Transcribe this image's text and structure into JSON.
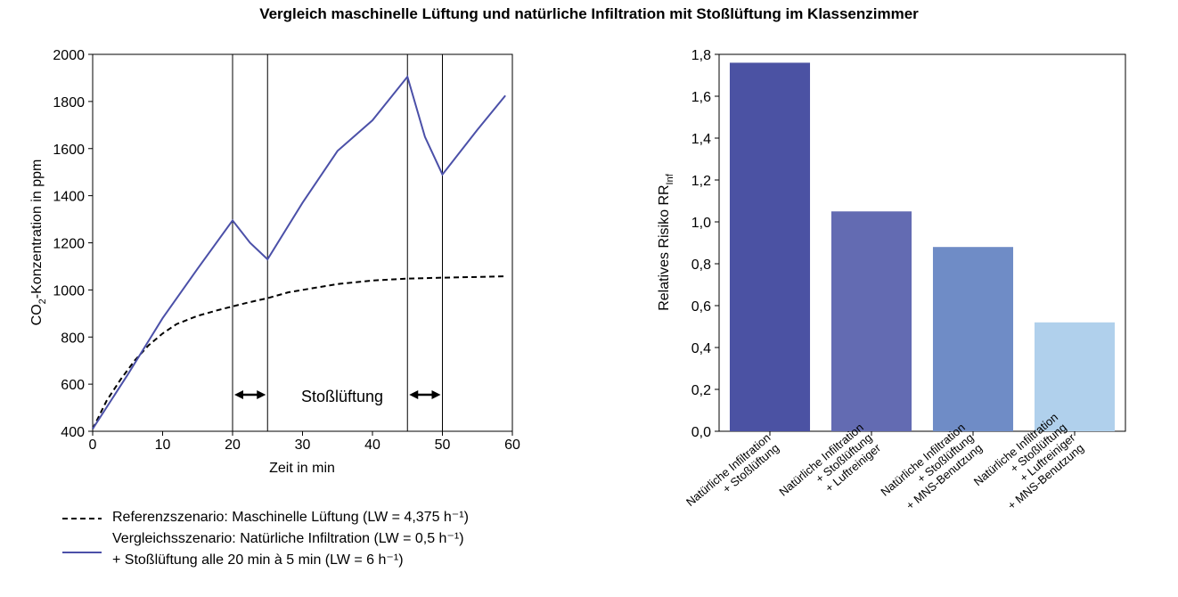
{
  "title": "Vergleich maschinelle Lüftung und natürliche Infiltration mit Stoßlüftung im Klassenzimmer",
  "chart_data": [
    {
      "type": "line",
      "xlabel": "Zeit in min",
      "ylabel_main": "CO",
      "ylabel_sub": "2",
      "ylabel_rest": "-Konzentration in ppm",
      "xlim": [
        0,
        60
      ],
      "ylim": [
        400,
        2000
      ],
      "xticks": [
        0,
        10,
        20,
        30,
        40,
        50,
        60
      ],
      "yticks": [
        400,
        600,
        800,
        1000,
        1200,
        1400,
        1600,
        1800,
        2000
      ],
      "vlines": [
        20,
        25,
        45,
        50
      ],
      "annotation": "Stoßlüftung",
      "series": [
        {
          "name": "Referenzszenario: Maschinelle Lüftung",
          "style": "dashed",
          "color": "#000000",
          "x": [
            0,
            2,
            4,
            6,
            8,
            10,
            12,
            15,
            18,
            20,
            22,
            25,
            28,
            30,
            35,
            40,
            45,
            50,
            55,
            59
          ],
          "y": [
            410,
            530,
            620,
            700,
            765,
            815,
            855,
            890,
            915,
            930,
            945,
            965,
            990,
            1000,
            1025,
            1040,
            1048,
            1052,
            1055,
            1058
          ]
        },
        {
          "name": "Vergleichsszenario: Natürliche Infiltration",
          "style": "solid",
          "color": "#4b50a8",
          "x": [
            0,
            5,
            10,
            15,
            20,
            22.5,
            25,
            30,
            35,
            40,
            45,
            47.5,
            50,
            55,
            59
          ],
          "y": [
            410,
            640,
            880,
            1090,
            1295,
            1200,
            1130,
            1370,
            1590,
            1720,
            1905,
            1650,
            1490,
            1680,
            1825
          ]
        }
      ],
      "legend": [
        {
          "text": "Referenzszenario: Maschinelle Lüftung (LW = 4,375 h⁻¹)"
        },
        {
          "text": "Vergleichsszenario: Natürliche Infiltration (LW = 0,5 h⁻¹)"
        },
        {
          "text": "+ Stoßlüftung alle 20 min à 5 min (LW = 6 h⁻¹)"
        }
      ]
    },
    {
      "type": "bar",
      "ylabel_main": "Relatives Risiko RR",
      "ylabel_sub": "Inf",
      "ylim": [
        0,
        1.8
      ],
      "yticks": [
        "0,0",
        "0,2",
        "0,4",
        "0,6",
        "0,8",
        "1,0",
        "1,2",
        "1,4",
        "1,6",
        "1,8"
      ],
      "categories": [
        [
          "Natürliche Infiltration",
          "+ Stoßlüftung"
        ],
        [
          "Natürliche Infiltration",
          "+ Stoßlüftung",
          "+ Luftreiniger"
        ],
        [
          "Natürliche Infiltration",
          "+ Stoßlüftung",
          "+ MNS-Benutzung"
        ],
        [
          "Natürliche Infiltration",
          "+ Stoßlüftung",
          "+ Luftreiniger",
          "+ MNS-Benutzung"
        ]
      ],
      "values": [
        1.76,
        1.05,
        0.88,
        0.52
      ],
      "colors": [
        "#4b52a3",
        "#636bb2",
        "#6f8cc6",
        "#b0d0ec"
      ]
    }
  ]
}
